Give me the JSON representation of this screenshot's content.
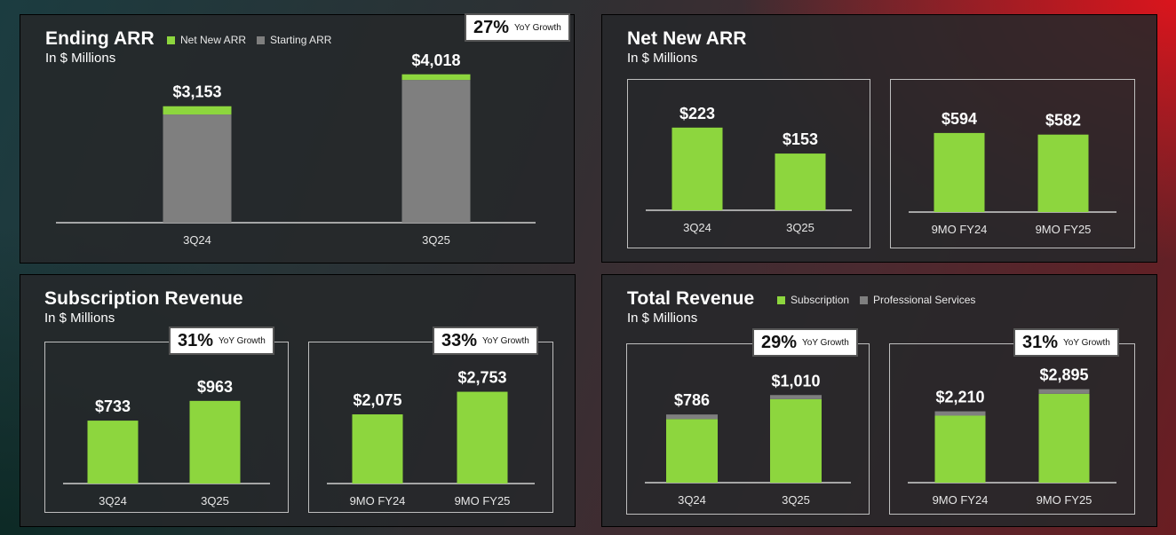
{
  "colors": {
    "green": "#8dd63e",
    "gray": "#7f7f7f",
    "axis": "#d0d0d0"
  },
  "panels": {
    "ending_arr": {
      "title": "Ending ARR",
      "subtitle": "In $ Millions",
      "legend": [
        "Net New ARR",
        "Starting ARR"
      ],
      "badge": {
        "pct": "27%",
        "label": "YoY Growth"
      }
    },
    "net_new_arr": {
      "title": "Net New ARR",
      "subtitle": "In $ Millions"
    },
    "subscription_revenue": {
      "title": "Subscription Revenue",
      "subtitle": "In $ Millions",
      "badges": [
        {
          "pct": "31%",
          "label": "YoY Growth"
        },
        {
          "pct": "33%",
          "label": "YoY Growth"
        }
      ]
    },
    "total_revenue": {
      "title": "Total Revenue",
      "subtitle": "In $ Millions",
      "legend": [
        "Subscription",
        "Professional Services"
      ],
      "badges": [
        {
          "pct": "29%",
          "label": "YoY Growth"
        },
        {
          "pct": "31%",
          "label": "YoY Growth"
        }
      ]
    }
  },
  "chart_data": [
    {
      "id": "ending_arr",
      "type": "bar",
      "stacked": true,
      "categories": [
        "3Q24",
        "3Q25"
      ],
      "series": [
        {
          "name": "Starting ARR",
          "values": [
            2930,
            3865
          ]
        },
        {
          "name": "Net New ARR",
          "values": [
            223,
            153
          ]
        }
      ],
      "totals_labels": [
        "$3,153",
        "$4,018"
      ],
      "ylim": [
        0,
        4300
      ]
    },
    {
      "id": "net_new_arr_q",
      "type": "bar",
      "categories": [
        "3Q24",
        "3Q25"
      ],
      "values": [
        223,
        153
      ],
      "labels": [
        "$223",
        "$153"
      ],
      "ylim": [
        0,
        280
      ]
    },
    {
      "id": "net_new_arr_9mo",
      "type": "bar",
      "categories": [
        "9MO FY24",
        "9MO FY25"
      ],
      "values": [
        594,
        582
      ],
      "labels": [
        "$594",
        "$582"
      ],
      "ylim": [
        0,
        740
      ]
    },
    {
      "id": "sub_rev_q",
      "type": "bar",
      "categories": [
        "3Q24",
        "3Q25"
      ],
      "values": [
        733,
        963
      ],
      "labels": [
        "$733",
        "$963"
      ],
      "ylim": [
        0,
        1230
      ]
    },
    {
      "id": "sub_rev_9mo",
      "type": "bar",
      "categories": [
        "9MO FY24",
        "9MO FY25"
      ],
      "values": [
        2075,
        2753
      ],
      "labels": [
        "$2,075",
        "$2,753"
      ],
      "ylim": [
        0,
        3300
      ]
    },
    {
      "id": "total_rev_q",
      "type": "bar",
      "stacked": true,
      "categories": [
        "3Q24",
        "3Q25"
      ],
      "series": [
        {
          "name": "Subscription",
          "values": [
            733,
            963
          ]
        },
        {
          "name": "Professional Services",
          "values": [
            53,
            47
          ]
        }
      ],
      "totals_labels": [
        "$786",
        "$1,010"
      ],
      "ylim": [
        0,
        1340
      ]
    },
    {
      "id": "total_rev_9mo",
      "type": "bar",
      "stacked": true,
      "categories": [
        "9MO FY24",
        "9MO FY25"
      ],
      "series": [
        {
          "name": "Subscription",
          "values": [
            2075,
            2753
          ]
        },
        {
          "name": "Professional Services",
          "values": [
            135,
            142
          ]
        }
      ],
      "totals_labels": [
        "$2,210",
        "$2,895"
      ],
      "ylim": [
        0,
        3600
      ]
    }
  ]
}
